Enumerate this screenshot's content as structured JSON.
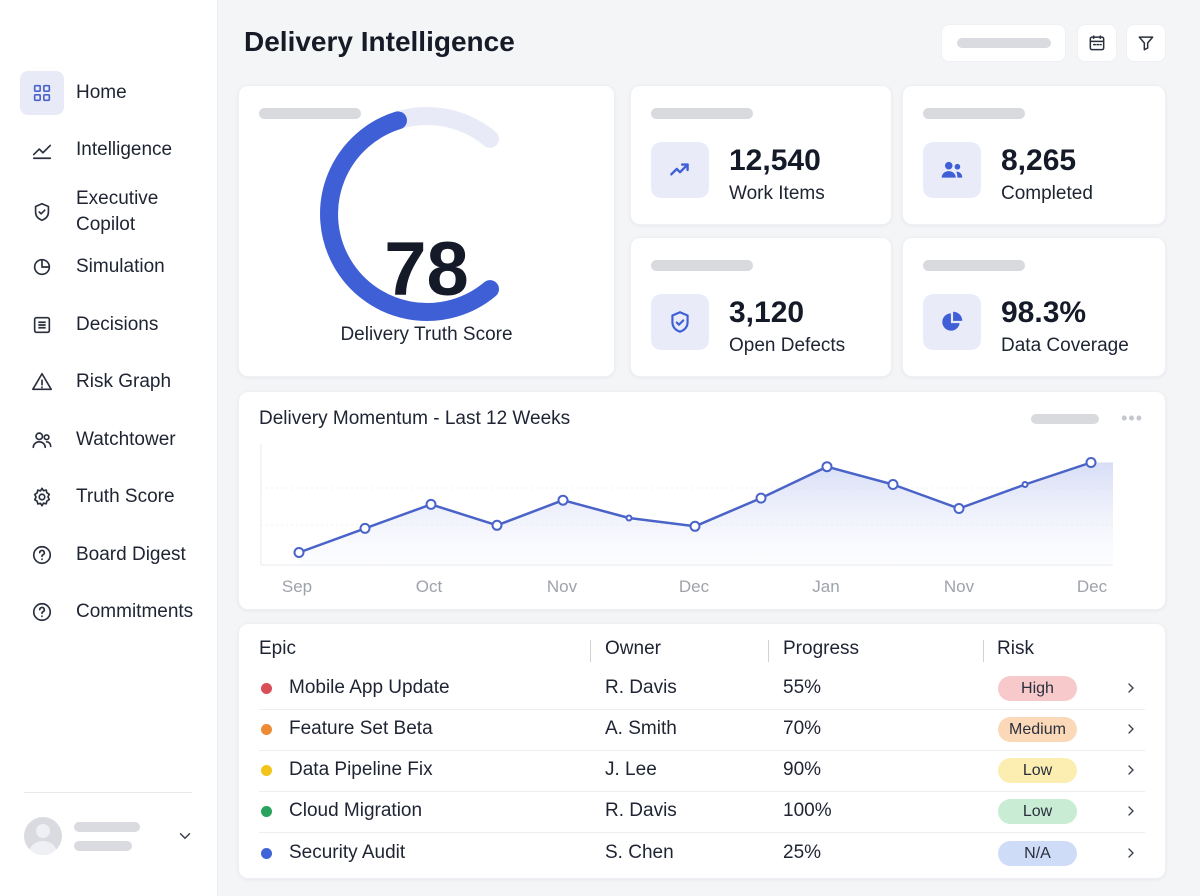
{
  "header": {
    "title": "Delivery Intelligence"
  },
  "sidebar": {
    "items": [
      {
        "label": "Home",
        "icon": "grid-icon",
        "active": true
      },
      {
        "label": "Intelligence",
        "icon": "trend-line-icon"
      },
      {
        "label": "Executive Copilot",
        "icon": "shield-check-icon"
      },
      {
        "label": "Simulation",
        "icon": "pie-chart-icon"
      },
      {
        "label": "Decisions",
        "icon": "list-icon"
      },
      {
        "label": "Risk Graph",
        "icon": "warning-icon"
      },
      {
        "label": "Watchtower",
        "icon": "users-icon"
      },
      {
        "label": "Truth Score",
        "icon": "gear-icon"
      },
      {
        "label": "Board Digest",
        "icon": "help-circle-icon"
      },
      {
        "label": "Commitments",
        "icon": "help-circle-icon"
      }
    ]
  },
  "score": {
    "value": "78",
    "fraction": 0.78,
    "label": "Delivery Truth Score",
    "color": "#3f5fd6"
  },
  "kpis": [
    {
      "value": "12,540",
      "label": "Work Items",
      "icon": "trend-up-icon"
    },
    {
      "value": "8,265",
      "label": "Completed",
      "icon": "users-icon"
    },
    {
      "value": "3,120",
      "label": "Open Defects",
      "icon": "shield-icon"
    },
    {
      "value": "98.3%",
      "label": "Data Coverage",
      "icon": "pie-chart-icon"
    }
  ],
  "chart_data": {
    "type": "line",
    "title": "Delivery Momentum - Last 12 Weeks",
    "x_labels": [
      "Sep",
      "Oct",
      "Nov",
      "Dec",
      "Jan",
      "Nov",
      "Dec"
    ],
    "series": [
      {
        "values": [
          12,
          35,
          58,
          38,
          62,
          45,
          37,
          64,
          94,
          77,
          54,
          77,
          98
        ]
      }
    ],
    "ylim": [
      0,
      110
    ],
    "grid": true,
    "color": "#4a63c9"
  },
  "table": {
    "columns": [
      "Epic",
      "Owner",
      "Progress",
      "Risk"
    ],
    "rows": [
      {
        "epic": "Mobile App Update",
        "owner": "R. Davis",
        "progress": "55%",
        "risk": "High",
        "dot": "#d94f57",
        "badge": "#f7c9cb"
      },
      {
        "epic": "Feature Set Beta",
        "owner": "A. Smith",
        "progress": "70%",
        "risk": "Medium",
        "dot": "#ee8a35",
        "badge": "#fbd8b8"
      },
      {
        "epic": "Data Pipeline Fix",
        "owner": "J. Lee",
        "progress": "90%",
        "risk": "Low",
        "dot": "#f0c419",
        "badge": "#fbeeb0"
      },
      {
        "epic": "Cloud Migration",
        "owner": "R. Davis",
        "progress": "100%",
        "risk": "Low",
        "dot": "#27a35c",
        "badge": "#c9ecd4"
      },
      {
        "epic": "Security Audit",
        "owner": "S. Chen",
        "progress": "25%",
        "risk": "N/A",
        "dot": "#3f64d8",
        "badge": "#cfdcf8"
      }
    ]
  }
}
